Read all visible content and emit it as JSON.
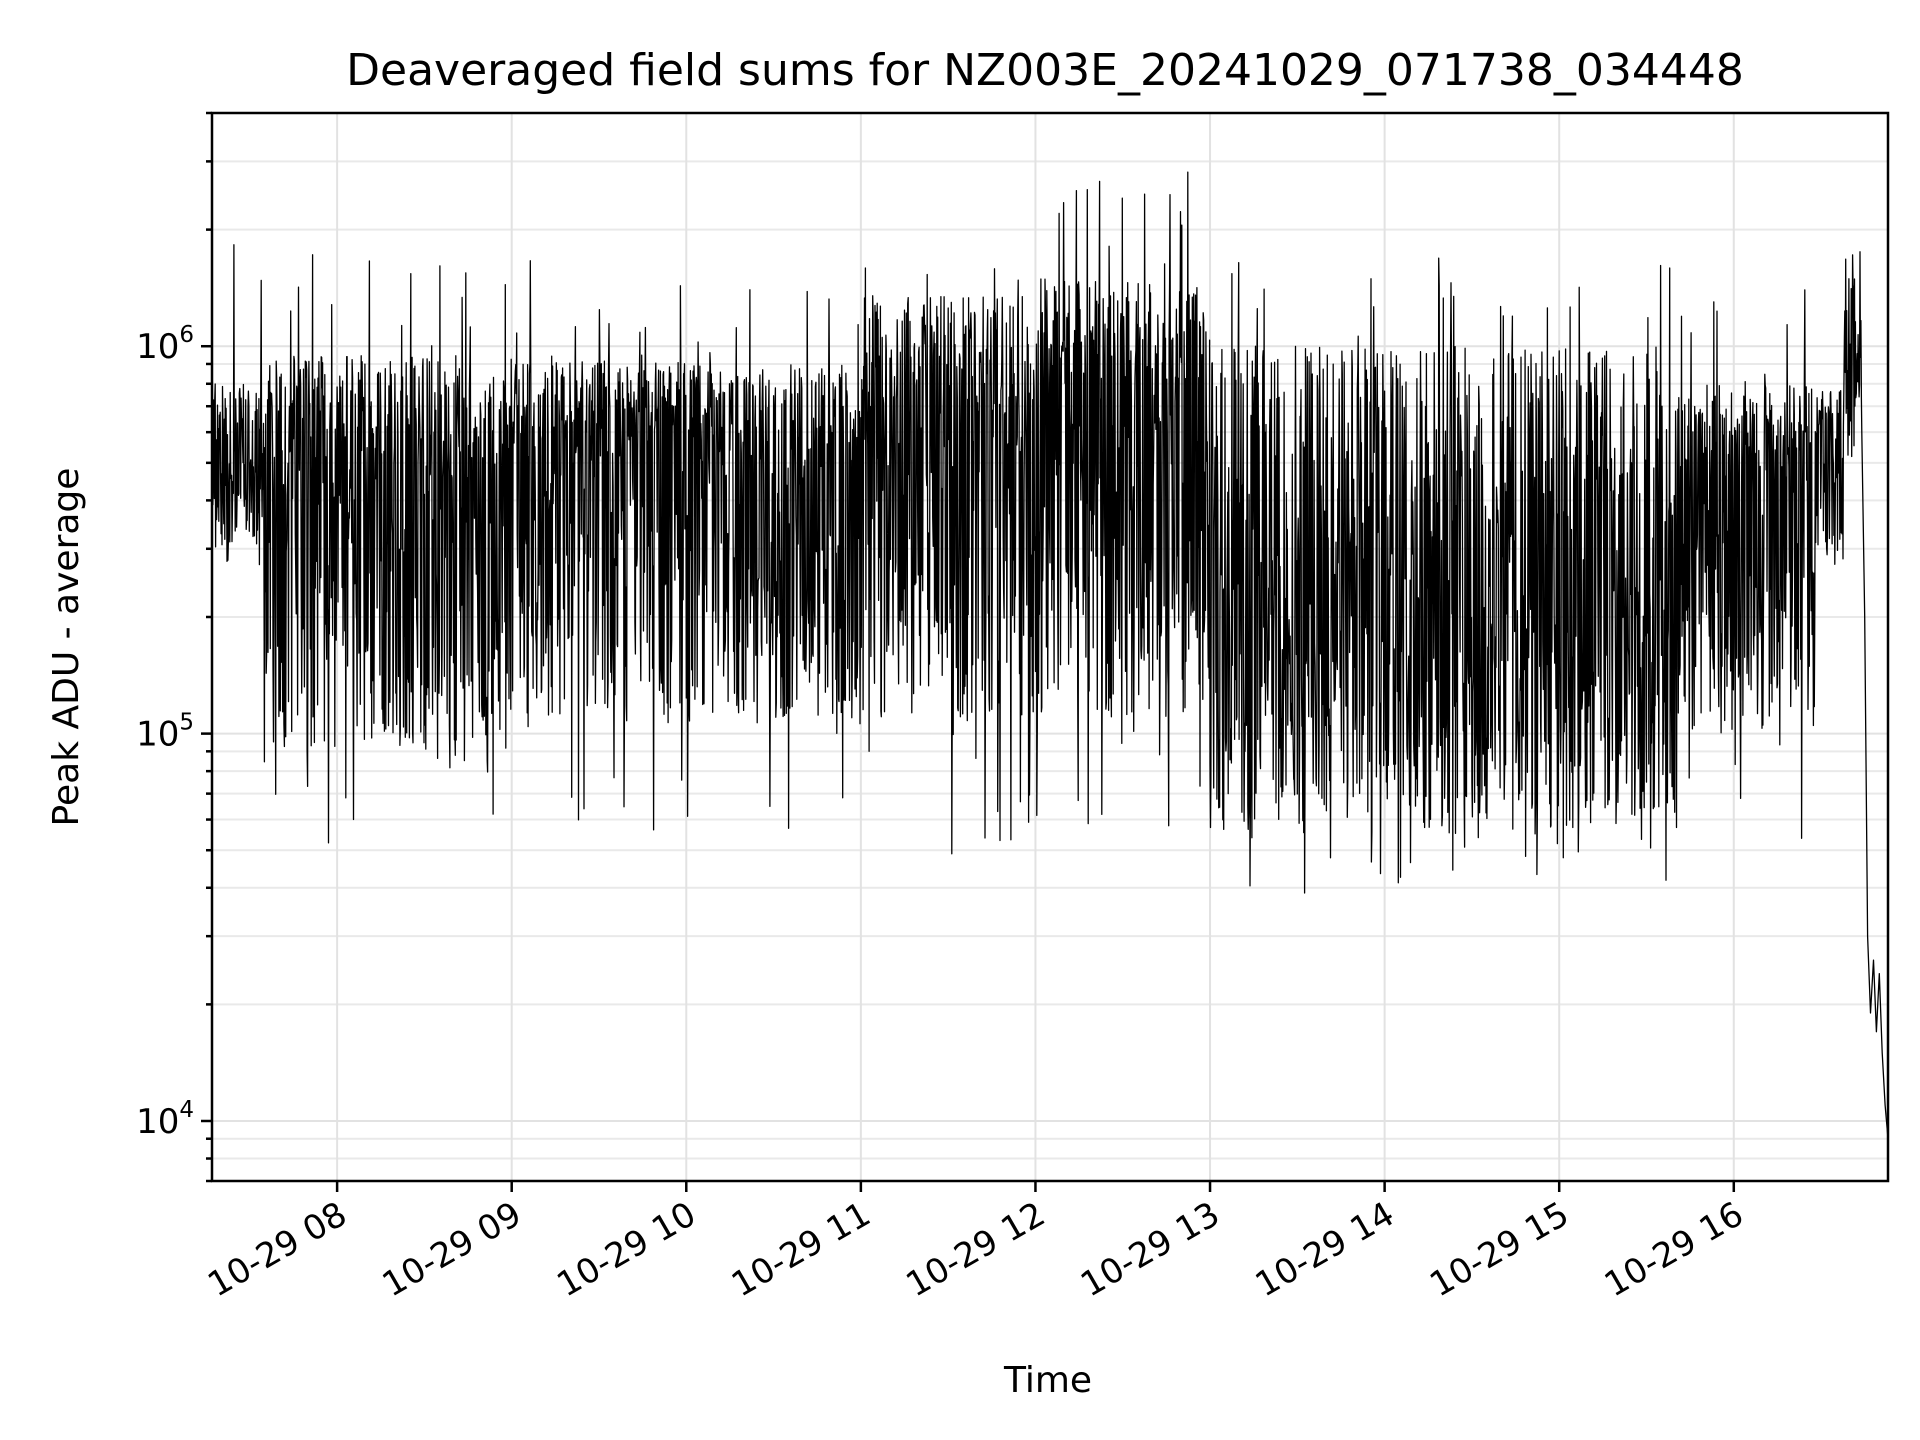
{
  "chart_data": {
    "type": "line",
    "title": "Deaveraged field sums for NZ003E_20241029_071738_034448",
    "xlabel": "Time",
    "ylabel": "Peak ADU - average",
    "yscale": "log",
    "xlim": [
      "2024-10-29 07:17",
      "2024-10-29 16:53"
    ],
    "ylim": [
      7000,
      4000000
    ],
    "grid": true,
    "legend": "none",
    "line_color": "#000000",
    "x_ticks": [
      {
        "value": "2024-10-29 08:00",
        "label": "10-29 08"
      },
      {
        "value": "2024-10-29 09:00",
        "label": "10-29 09"
      },
      {
        "value": "2024-10-29 10:00",
        "label": "10-29 10"
      },
      {
        "value": "2024-10-29 11:00",
        "label": "10-29 11"
      },
      {
        "value": "2024-10-29 12:00",
        "label": "10-29 12"
      },
      {
        "value": "2024-10-29 13:00",
        "label": "10-29 13"
      },
      {
        "value": "2024-10-29 14:00",
        "label": "10-29 14"
      },
      {
        "value": "2024-10-29 15:00",
        "label": "10-29 15"
      },
      {
        "value": "2024-10-29 16:00",
        "label": "10-29 16"
      }
    ],
    "y_ticks": [
      {
        "value": 10000,
        "base": "10",
        "exp": "4"
      },
      {
        "value": 100000,
        "base": "10",
        "exp": "5"
      },
      {
        "value": 1000000,
        "base": "10",
        "exp": "6"
      }
    ],
    "envelope_segments": [
      {
        "t_start": "2024-10-29 07:17",
        "t_end": "2024-10-29 07:35",
        "low": 300000,
        "mid": 480000,
        "high": 800000,
        "min": 260000,
        "max": 2000000
      },
      {
        "t_start": "2024-10-29 07:35",
        "t_end": "2024-10-29 09:00",
        "low": 90000,
        "mid": 450000,
        "high": 950000,
        "min": 48000,
        "max": 1800000
      },
      {
        "t_start": "2024-10-29 09:00",
        "t_end": "2024-10-29 10:00",
        "low": 110000,
        "mid": 500000,
        "high": 950000,
        "min": 55000,
        "max": 2000000
      },
      {
        "t_start": "2024-10-29 10:00",
        "t_end": "2024-10-29 11:00",
        "low": 110000,
        "mid": 460000,
        "high": 900000,
        "min": 55000,
        "max": 1600000
      },
      {
        "t_start": "2024-10-29 11:00",
        "t_end": "2024-10-29 12:00",
        "low": 110000,
        "mid": 620000,
        "high": 1350000,
        "min": 48000,
        "max": 1600000
      },
      {
        "t_start": "2024-10-29 12:00",
        "t_end": "2024-10-29 13:00",
        "low": 110000,
        "mid": 650000,
        "high": 1500000,
        "min": 48000,
        "max": 3000000
      },
      {
        "t_start": "2024-10-29 13:00",
        "t_end": "2024-10-29 15:40",
        "low": 55000,
        "mid": 220000,
        "high": 1000000,
        "min": 38000,
        "max": 1700000
      },
      {
        "t_start": "2024-10-29 15:40",
        "t_end": "2024-10-29 16:28",
        "low": 100000,
        "mid": 400000,
        "high": 800000,
        "min": 53000,
        "max": 1400000
      },
      {
        "t_start": "2024-10-29 16:28",
        "t_end": "2024-10-29 16:38",
        "low": 300000,
        "mid": 500000,
        "high": 800000,
        "min": 270000,
        "max": 1300000
      },
      {
        "t_start": "2024-10-29 16:38",
        "t_end": "2024-10-29 16:44",
        "low": 500000,
        "mid": 950000,
        "high": 1500000,
        "min": 400000,
        "max": 1900000
      }
    ],
    "tail_points": [
      {
        "t": "2024-10-29 16:44",
        "y": 600000
      },
      {
        "t": "2024-10-29 16:45",
        "y": 200000
      },
      {
        "t": "2024-10-29 16:46",
        "y": 30000
      },
      {
        "t": "2024-10-29 16:47",
        "y": 19000
      },
      {
        "t": "2024-10-29 16:48",
        "y": 26000
      },
      {
        "t": "2024-10-29 16:49",
        "y": 17000
      },
      {
        "t": "2024-10-29 16:50",
        "y": 24000
      },
      {
        "t": "2024-10-29 16:51",
        "y": 15000
      },
      {
        "t": "2024-10-29 16:52",
        "y": 11000
      },
      {
        "t": "2024-10-29 16:53",
        "y": 9000
      }
    ]
  }
}
